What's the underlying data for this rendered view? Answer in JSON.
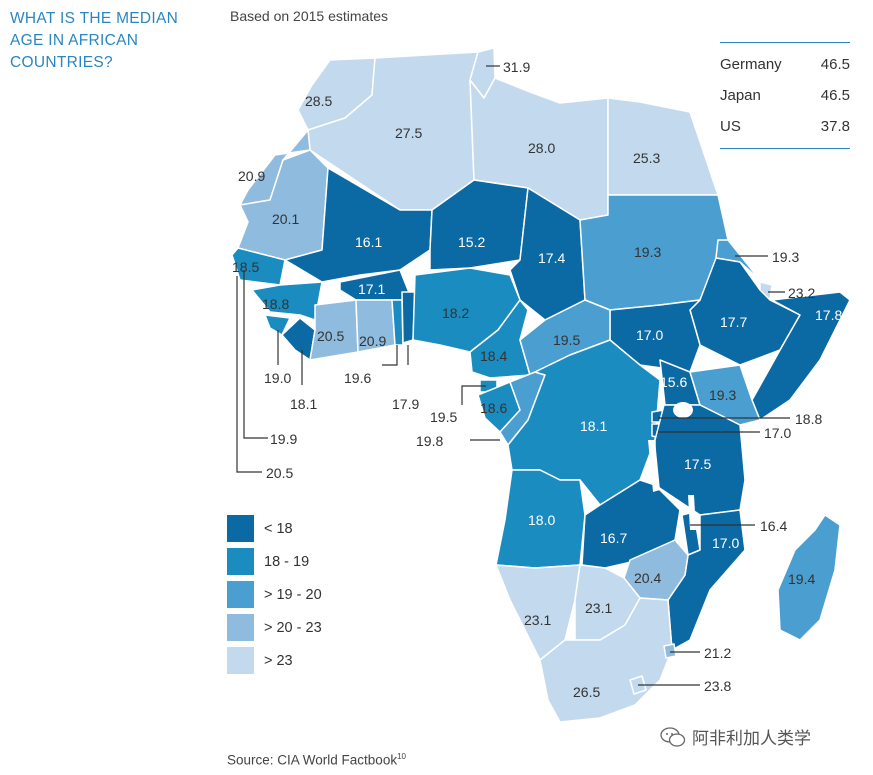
{
  "title_lines": [
    "WHAT IS THE MEDIAN",
    "AGE IN AFRICAN",
    "COUNTRIES?"
  ],
  "subtitle": "Based on 2015 estimates",
  "reference": [
    {
      "country": "Germany",
      "value": "46.5"
    },
    {
      "country": "Japan",
      "value": "46.5"
    },
    {
      "country": "US",
      "value": "37.8"
    }
  ],
  "legend": [
    {
      "label": "< 18",
      "color": "#0b69a3"
    },
    {
      "label": "18 - 19",
      "color": "#1a8cc0"
    },
    {
      "label": "> 19 - 20",
      "color": "#4b9fd0"
    },
    {
      "label": "> 20 - 23",
      "color": "#8fbbdf"
    },
    {
      "label": "> 23",
      "color": "#c3daee"
    }
  ],
  "source": "Source: CIA World Factbook",
  "source_sup": "10",
  "watermark": "阿非利加人类学",
  "map_labels": {
    "morocco": "28.5",
    "algeria": "27.5",
    "tunisia": "31.9",
    "libya": "28.0",
    "egypt": "25.3",
    "western_sahara": "20.9",
    "mauritania": "20.1",
    "mali": "16.1",
    "niger": "15.2",
    "chad": "17.4",
    "sudan": "19.3",
    "eritrea": "19.3",
    "djibouti": "23.2",
    "ethiopia": "17.7",
    "somalia": "17.8",
    "south_sudan": "17.0",
    "senegal": "18.5",
    "guinea": "18.8",
    "burkina_faso": "17.1",
    "nigeria": "18.2",
    "cote_divoire": "20.5",
    "ghana": "20.9",
    "sierra_leone": "19.0",
    "liberia": "18.1",
    "togo": "19.6",
    "benin": "17.9",
    "cameroon": "18.4",
    "car": "19.5",
    "eq_guinea": "19.5",
    "gabon": "18.6",
    "congo": "19.8",
    "gambia": "19.9",
    "guinea_bissau": "20.5",
    "drc": "18.1",
    "uganda": "15.6",
    "kenya": "19.3",
    "rwanda": "18.8",
    "burundi": "17.0",
    "tanzania": "17.5",
    "angola": "18.0",
    "zambia": "16.7",
    "malawi": "16.4",
    "mozambique": "17.0",
    "zimbabwe": "20.4",
    "madagascar": "19.4",
    "namibia": "23.1",
    "botswana": "23.1",
    "swaziland": "21.2",
    "lesotho": "23.8",
    "south_africa": "26.5"
  }
}
